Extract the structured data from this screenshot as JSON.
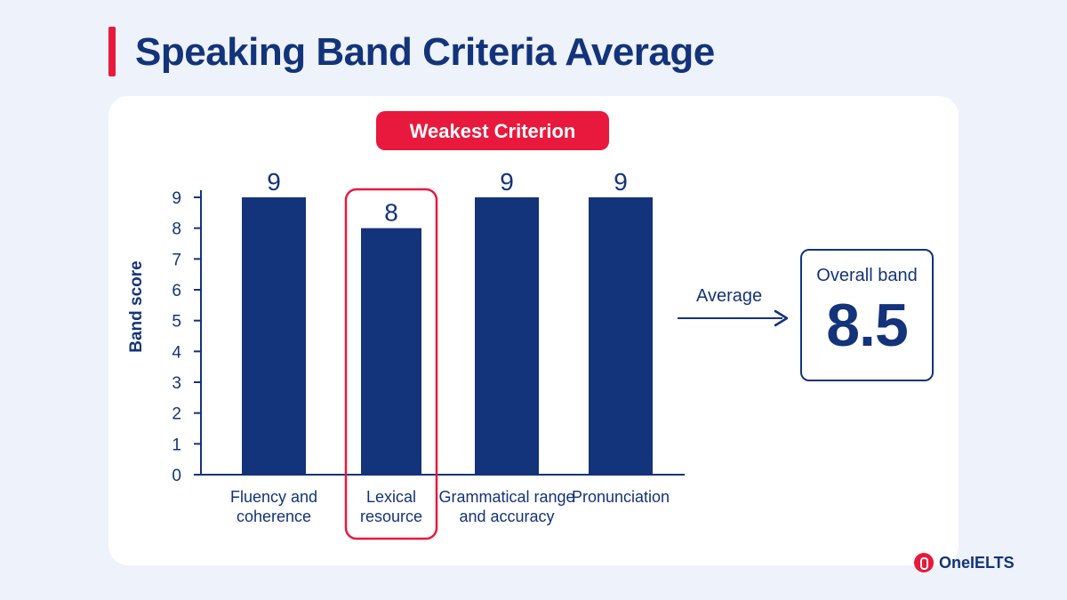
{
  "header": {
    "title": "Speaking Band Criteria Average"
  },
  "chart_data": {
    "type": "bar",
    "title": "Speaking Band Criteria Average",
    "ylabel": "Band score",
    "xlabel": "",
    "ylim": [
      0,
      9
    ],
    "yticks": [
      0,
      1,
      2,
      3,
      4,
      5,
      6,
      7,
      8,
      9
    ],
    "categories": [
      [
        "Fluency and",
        "coherence"
      ],
      [
        "Lexical",
        "resource"
      ],
      [
        "Grammatical range",
        "and accuracy"
      ],
      [
        "Pronunciation"
      ]
    ],
    "values": [
      9,
      8,
      9,
      9
    ],
    "highlight_index": 1,
    "highlight_label": "Weakest Criterion",
    "grid": false,
    "colors": {
      "bar": "#13337a",
      "highlight": "#e8193c",
      "axis": "#13337a"
    }
  },
  "summary": {
    "arrow_label": "Average",
    "overall_label": "Overall band",
    "overall_value": "8.5"
  },
  "brand": {
    "name": "OneIELTS",
    "icon": "oneielts-logo-icon"
  }
}
